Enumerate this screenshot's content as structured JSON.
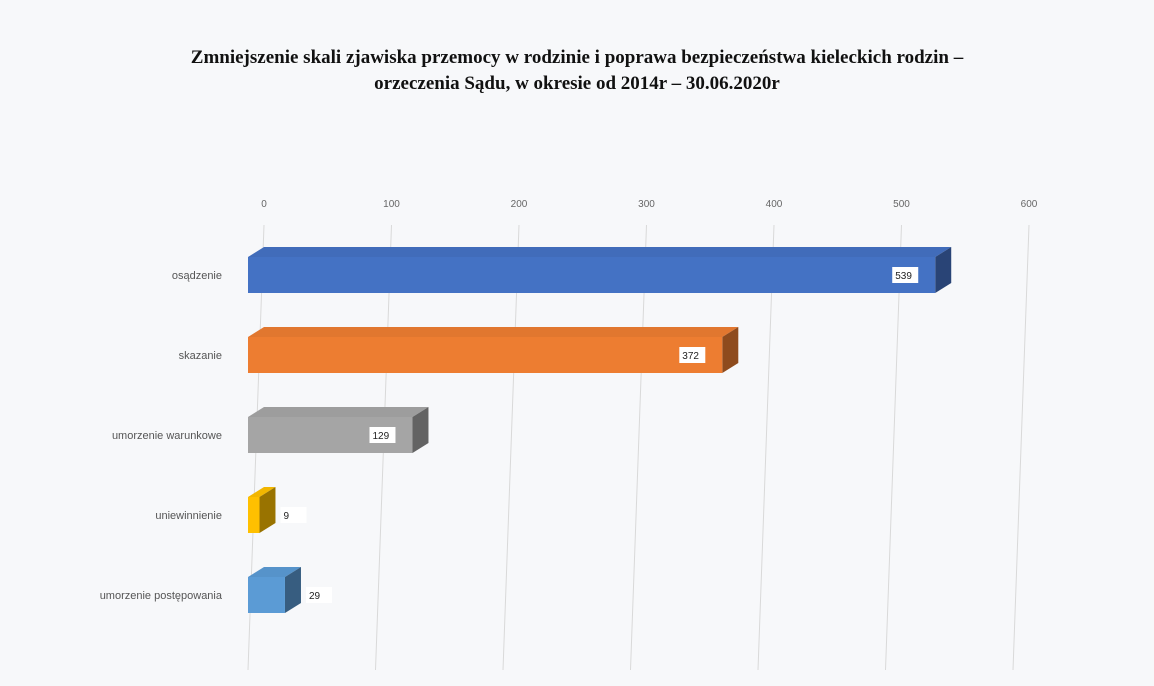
{
  "chart_data": {
    "type": "bar3d_horizontal",
    "title": [
      "Zmniejszenie skali zjawiska przemocy w rodzinie i poprawa  bezpieczeństwa  kieleckich rodzin –",
      "orzeczenia Sądu,  w okresie od  2014r – 30.06.2020r"
    ],
    "categories": [
      "osądzenie",
      "skazanie",
      "umorzenie warunkowe",
      "uniewinnienie",
      "umorzenie postępowania"
    ],
    "values": [
      539,
      372,
      129,
      9,
      29
    ],
    "colors": [
      "#4472c4",
      "#ed7d31",
      "#a5a5a5",
      "#ffc000",
      "#5b9bd5"
    ],
    "xlim": [
      0,
      600
    ],
    "xticks": [
      0,
      100,
      200,
      300,
      400,
      500,
      600
    ],
    "grid": true
  }
}
